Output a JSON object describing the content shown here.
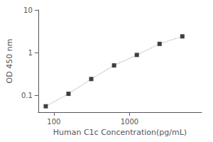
{
  "chart_data": {
    "type": "line",
    "xlabel": "Human C1c Concentration(pg/mL)",
    "ylabel": "OD 450 nm",
    "x": [
      78,
      156,
      312,
      625,
      1250,
      2500,
      5000
    ],
    "series": [
      {
        "type": "line",
        "line_style": "dotted",
        "color": "#b0b0b0",
        "values": [
          0.055,
          0.108,
          0.24,
          0.5,
          0.88,
          1.6,
          2.4
        ]
      },
      {
        "type": "scatter",
        "marker": "square",
        "color": "#111111",
        "values": [
          0.055,
          0.108,
          0.24,
          0.5,
          0.88,
          1.6,
          2.4
        ]
      }
    ],
    "log": true,
    "xlim": [
      62,
      9000
    ],
    "ylim": [
      0.04,
      10
    ],
    "xticks": [
      100,
      1000
    ],
    "yticks": [
      0.1,
      1,
      10
    ],
    "grid": false
  }
}
